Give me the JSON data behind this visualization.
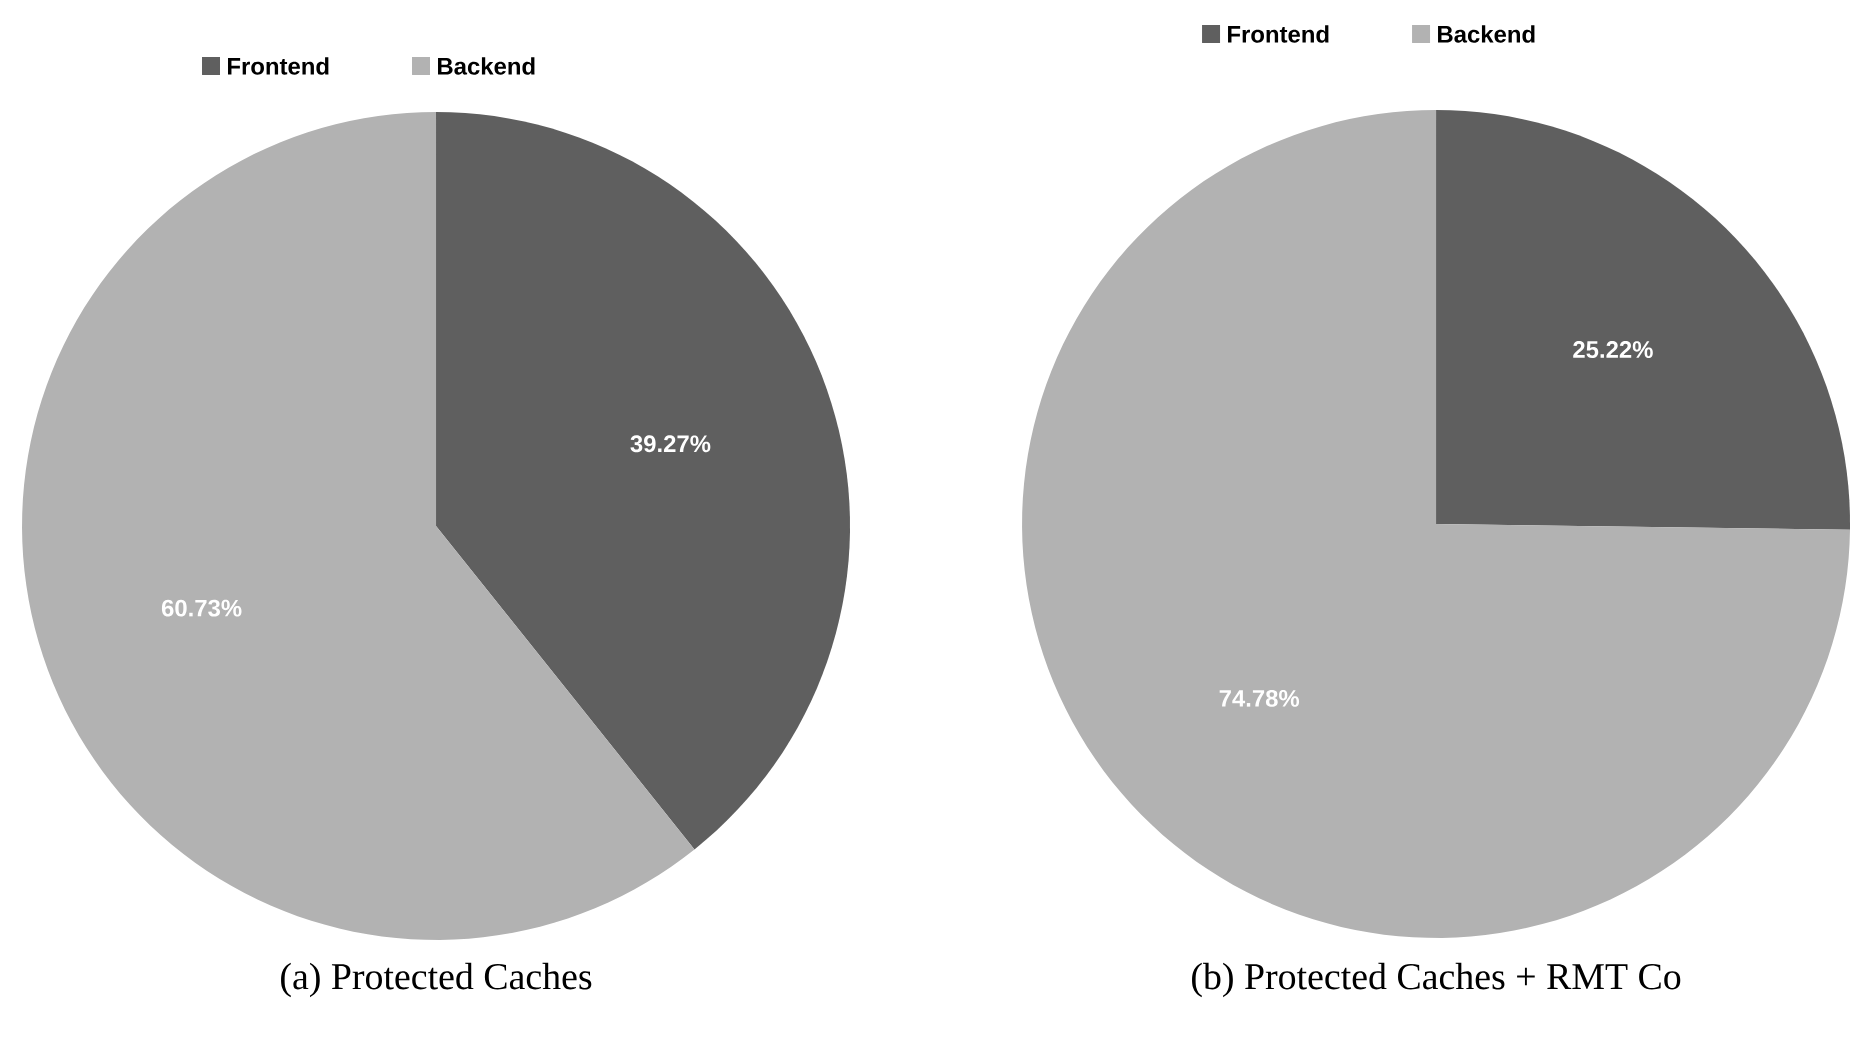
{
  "chart_data": [
    {
      "type": "pie",
      "title": "(a) Protected Caches",
      "categories": [
        "Frontend",
        "Backend"
      ],
      "values": [
        39.27,
        60.73
      ],
      "colors": [
        "#5f5f5f",
        "#b2b2b2"
      ],
      "value_labels": [
        "39.27%",
        "60.73%"
      ],
      "legend": "top"
    },
    {
      "type": "pie",
      "title": "(b) Protected Caches + RMT Co",
      "categories": [
        "Frontend",
        "Backend"
      ],
      "values": [
        25.22,
        74.78
      ],
      "colors": [
        "#5f5f5f",
        "#b2b2b2"
      ],
      "value_labels": [
        "25.22%",
        "74.78%"
      ],
      "legend": "top"
    }
  ]
}
